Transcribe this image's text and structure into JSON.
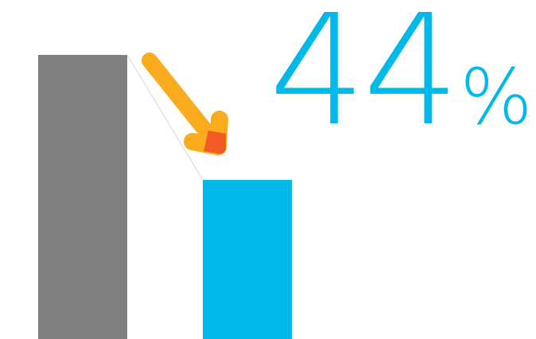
{
  "chart_data": {
    "type": "bar",
    "categories": [
      "",
      ""
    ],
    "values": [
      100,
      56
    ],
    "ylim": [
      0,
      100
    ],
    "grid": false,
    "change_label": {
      "value": "44",
      "unit": "%"
    },
    "arrow_direction": "down",
    "colors": {
      "before": "#808080",
      "after": "#00b9e8",
      "arrow": "#fbac1e",
      "arrow_tip": "#f04e23",
      "connector": "#d9dde8"
    }
  }
}
